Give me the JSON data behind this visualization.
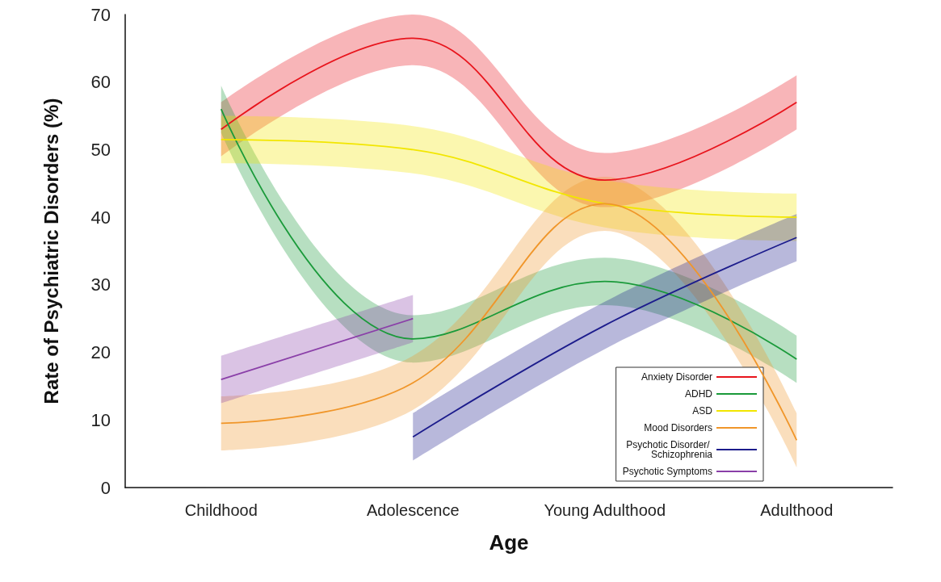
{
  "chart_data": {
    "type": "line",
    "xlabel": "Age",
    "ylabel": "Rate of Psychiatric Disorders (%)",
    "categories": [
      "Childhood",
      "Adolescence",
      "Young Adulthood",
      "Adulthood"
    ],
    "series": [
      {
        "name": "Anxiety Disorder",
        "color": "#e8141c",
        "values": [
          53,
          66.5,
          45.5,
          57
        ],
        "lower": [
          49,
          62.5,
          41.5,
          53
        ],
        "upper": [
          57,
          70,
          49.5,
          61
        ]
      },
      {
        "name": "ADHD",
        "color": "#1a9a3a",
        "values": [
          56,
          22,
          30.5,
          19
        ],
        "lower": [
          52.5,
          18.5,
          27,
          15.5
        ],
        "upper": [
          59.5,
          25.5,
          34,
          22.5
        ]
      },
      {
        "name": "ASD",
        "color": "#f2e600",
        "values": [
          51.5,
          50,
          42,
          40
        ],
        "lower": [
          48,
          46.5,
          38.5,
          36.5
        ],
        "upper": [
          55,
          53.5,
          45.5,
          43.5
        ]
      },
      {
        "name": "Mood Disorders",
        "color": "#f0962a",
        "values": [
          9.5,
          15.5,
          42,
          7
        ],
        "lower": [
          5.5,
          11.5,
          38,
          3
        ],
        "upper": [
          13.5,
          19.5,
          46,
          11
        ]
      },
      {
        "name": "Psychotic Disorder/ Schizophrenia",
        "color": "#1c1c8c",
        "values": [
          null,
          7.5,
          24,
          37
        ],
        "lower": [
          null,
          4,
          20.5,
          33.5
        ],
        "upper": [
          null,
          11,
          27.5,
          40.5
        ]
      },
      {
        "name": "Psychotic Symptoms",
        "color": "#8a3fa8",
        "values": [
          16,
          25,
          null,
          null
        ],
        "lower": [
          12.5,
          21.5,
          null,
          null
        ],
        "upper": [
          19.5,
          28.5,
          null,
          null
        ]
      }
    ],
    "ylim": [
      0,
      70
    ],
    "yticks": [
      0,
      10,
      20,
      30,
      40,
      50,
      60,
      70
    ],
    "grid": false,
    "legend": "bottom right",
    "marker": "none",
    "line_style": "solid"
  }
}
